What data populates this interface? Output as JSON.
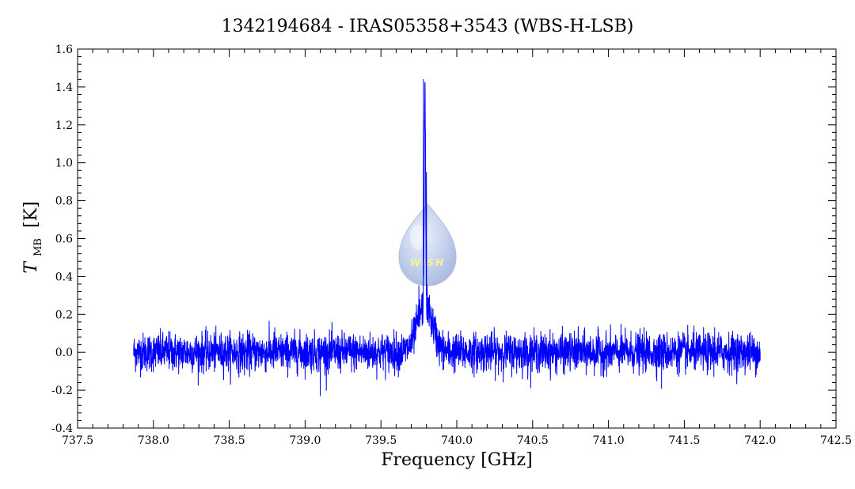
{
  "chart_data": {
    "type": "line",
    "title": "1342194684 - IRAS05358+3543 (WBS-H-LSB)",
    "xlabel": "Frequency [GHz]",
    "ylabel_main": "T",
    "ylabel_sub": "MB",
    "ylabel_unit": "[K]",
    "xlim": [
      737.5,
      742.5
    ],
    "ylim": [
      -0.4,
      1.6
    ],
    "x_ticks": [
      737.5,
      738.0,
      738.5,
      739.0,
      739.5,
      740.0,
      740.5,
      741.0,
      741.5,
      742.0,
      742.5
    ],
    "x_tick_labels": [
      "737.5",
      "738.0",
      "738.5",
      "739.0",
      "739.5",
      "740.0",
      "740.5",
      "741.0",
      "741.5",
      "742.0",
      "742.5"
    ],
    "y_ticks": [
      -0.4,
      -0.2,
      0.0,
      0.2,
      0.4,
      0.6,
      0.8,
      1.0,
      1.2,
      1.4,
      1.6
    ],
    "y_tick_labels": [
      "-0.4",
      "-0.2",
      "0.0",
      "0.2",
      "0.4",
      "0.6",
      "0.8",
      "1.0",
      "1.2",
      "1.4",
      "1.6"
    ],
    "grid": false,
    "series": [
      {
        "color": "#0000ff",
        "x_range": [
          737.87,
          742.0
        ],
        "baseline": 0.0,
        "noise_rms": 0.05,
        "line_center": 739.79,
        "peak": 1.44,
        "wing_amplitude": 0.25,
        "wing_width": 0.05,
        "points": [
          [
            737.87,
            0.02
          ],
          [
            738.0,
            -0.03
          ],
          [
            738.1,
            0.11
          ],
          [
            738.2,
            0.0
          ],
          [
            738.3,
            -0.09
          ],
          [
            738.5,
            0.04
          ],
          [
            738.6,
            -0.12
          ],
          [
            738.8,
            0.13
          ],
          [
            739.0,
            -0.05
          ],
          [
            739.1,
            -0.23
          ],
          [
            739.3,
            0.08
          ],
          [
            739.5,
            0.0
          ],
          [
            739.65,
            0.04
          ],
          [
            739.72,
            0.18
          ],
          [
            739.75,
            0.35
          ],
          [
            739.78,
            1.44
          ],
          [
            739.79,
            1.4
          ],
          [
            739.8,
            0.95
          ],
          [
            739.82,
            0.3
          ],
          [
            739.85,
            0.12
          ],
          [
            739.9,
            -0.05
          ],
          [
            740.0,
            0.02
          ],
          [
            740.2,
            0.09
          ],
          [
            740.4,
            -0.03
          ],
          [
            740.6,
            0.0
          ],
          [
            740.8,
            0.11
          ],
          [
            741.0,
            -0.02
          ],
          [
            741.2,
            0.08
          ],
          [
            741.35,
            -0.19
          ],
          [
            741.5,
            0.05
          ],
          [
            741.7,
            0.13
          ],
          [
            741.85,
            -0.04
          ],
          [
            742.0,
            0.0
          ]
        ]
      }
    ],
    "watermark_text": "WISH"
  }
}
